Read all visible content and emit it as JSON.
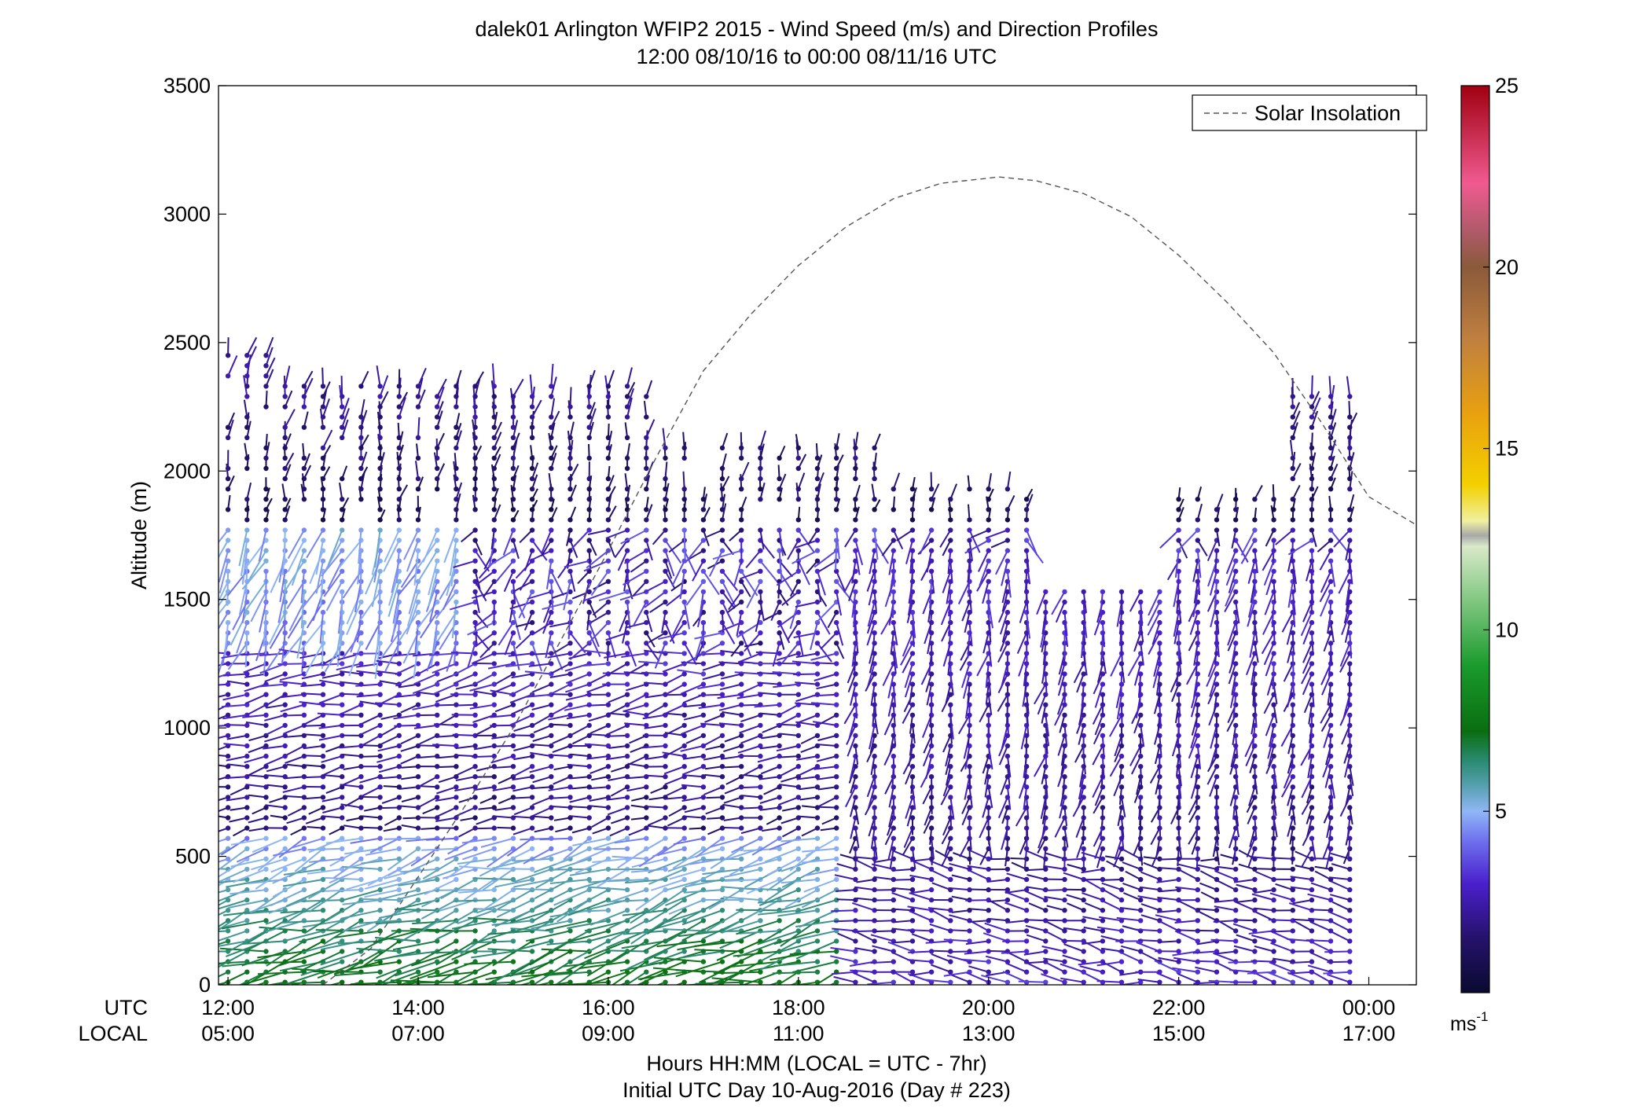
{
  "title": {
    "line1": "dalek01 Arlington WFIP2 2015 - Wind Speed (m/s) and Direction Profiles",
    "line2": "12:00 08/10/16 to 00:00 08/11/16  UTC"
  },
  "xlabel": {
    "line1": "Hours HH:MM  (LOCAL = UTC - 7hr)",
    "line2": "Initial UTC Day 10-Aug-2016 (Day # 223)"
  },
  "row_labels": {
    "utc": "UTC",
    "local": "LOCAL"
  },
  "colorbar": {
    "unit": "ms",
    "unit_sup": "-1"
  },
  "chart_data": {
    "type": "scatter",
    "subtype": "wind-barb profile",
    "xlabel": "Hours HH:MM  (LOCAL = UTC - 7hr)",
    "ylabel": "Altitude (m)",
    "xlim": [
      11.9,
      24.5
    ],
    "ylim": [
      0,
      3500
    ],
    "grid": false,
    "legend": {
      "position": "top-right",
      "entries": [
        "Solar Insolation"
      ]
    },
    "x_ticks": [
      {
        "x": 12,
        "utc": "12:00",
        "local": "05:00"
      },
      {
        "x": 14,
        "utc": "14:00",
        "local": "07:00"
      },
      {
        "x": 16,
        "utc": "16:00",
        "local": "09:00"
      },
      {
        "x": 18,
        "utc": "18:00",
        "local": "11:00"
      },
      {
        "x": 20,
        "utc": "20:00",
        "local": "13:00"
      },
      {
        "x": 22,
        "utc": "22:00",
        "local": "15:00"
      },
      {
        "x": 24,
        "utc": "00:00",
        "local": "17:00"
      }
    ],
    "y_ticks": [
      "0",
      "500",
      "1000",
      "1500",
      "2000",
      "2500",
      "3000",
      "3500"
    ],
    "y_tick_values": [
      0,
      500,
      1000,
      1500,
      2000,
      2500,
      3000,
      3500
    ],
    "colorbar_range": [
      0,
      25
    ],
    "colorbar_ticks": [
      "5",
      "10",
      "15",
      "20",
      "25"
    ],
    "colorbar_tick_values": [
      5,
      10,
      15,
      20,
      25
    ],
    "colormap_stops": [
      {
        "v": 0,
        "c": "#0a0a30"
      },
      {
        "v": 1.5,
        "c": "#25126b"
      },
      {
        "v": 3,
        "c": "#4a1fcc"
      },
      {
        "v": 4.2,
        "c": "#6f72ee"
      },
      {
        "v": 5,
        "c": "#8fb7f5"
      },
      {
        "v": 5.8,
        "c": "#4f9da6"
      },
      {
        "v": 6.4,
        "c": "#2a8a70"
      },
      {
        "v": 7.2,
        "c": "#0a6e10"
      },
      {
        "v": 9,
        "c": "#1a9a2c"
      },
      {
        "v": 11,
        "c": "#8ccc8a"
      },
      {
        "v": 12.3,
        "c": "#d9e8c9"
      },
      {
        "v": 12.6,
        "c": "#a8a8a8"
      },
      {
        "v": 13,
        "c": "#f0f0a0"
      },
      {
        "v": 14,
        "c": "#f4d000"
      },
      {
        "v": 16,
        "c": "#e8a010"
      },
      {
        "v": 18,
        "c": "#c08040"
      },
      {
        "v": 20,
        "c": "#8a5a3a"
      },
      {
        "v": 21,
        "c": "#b05a6a"
      },
      {
        "v": 22.3,
        "c": "#f05a90"
      },
      {
        "v": 25,
        "c": "#a00010"
      }
    ],
    "series": [
      {
        "name": "Solar Insolation",
        "style": "dashed",
        "color": "#555555",
        "x": [
          13.0,
          13.5,
          14.0,
          14.5,
          15.0,
          15.5,
          16.0,
          16.5,
          17.0,
          17.5,
          18.0,
          18.5,
          19.0,
          19.5,
          20.0,
          20.1,
          20.5,
          21.0,
          21.5,
          22.0,
          22.5,
          23.0,
          23.5,
          24.0,
          24.5
        ],
        "y": [
          0,
          140,
          420,
          700,
          1000,
          1340,
          1690,
          2050,
          2390,
          2610,
          2800,
          2950,
          3060,
          3120,
          3140,
          3145,
          3130,
          3080,
          2990,
          2840,
          2660,
          2460,
          2190,
          1900,
          1790
        ]
      }
    ],
    "wind_barbs": {
      "time_start": 12.0,
      "time_step": 0.2,
      "n_times": 60,
      "altitude_step": 40,
      "note": "Each barb: dot at (time, altitude), stick length proportional to speed, color = speed (m/s). Profiles summarised per altitude band.",
      "bands": [
        {
          "z_min": 0,
          "z_max": 500,
          "t_min": 12.0,
          "t_max": 18.5,
          "speed": [
            7.5,
            5.0
          ],
          "dir_deg": 255
        },
        {
          "z_min": 0,
          "z_max": 500,
          "t_min": 18.5,
          "t_max": 24.0,
          "speed": [
            3.0,
            2.0
          ],
          "dir_deg": 280
        },
        {
          "z_min": 500,
          "z_max": 600,
          "t_min": 12.0,
          "t_max": 18.5,
          "speed": [
            5.0,
            4.5
          ],
          "dir_deg": 250
        },
        {
          "z_min": 500,
          "z_max": 1300,
          "t_min": 12.0,
          "t_max": 18.5,
          "speed": [
            1.5,
            3.0
          ],
          "dir_deg": 260
        },
        {
          "z_min": 1300,
          "z_max": 1800,
          "t_min": 12.0,
          "t_max": 14.5,
          "speed": [
            4.5,
            5.0
          ],
          "dir_deg": 200
        },
        {
          "z_min": 500,
          "z_max": 1700,
          "t_min": 18.5,
          "t_max": 24.0,
          "speed": [
            2.0,
            3.0
          ],
          "dir_deg": 190
        },
        {
          "z_min": 1800,
          "z_max": 2500,
          "t_min": 12.0,
          "t_max": 24.0,
          "speed": [
            1.0,
            2.5
          ],
          "dir_deg": 10
        }
      ]
    }
  }
}
